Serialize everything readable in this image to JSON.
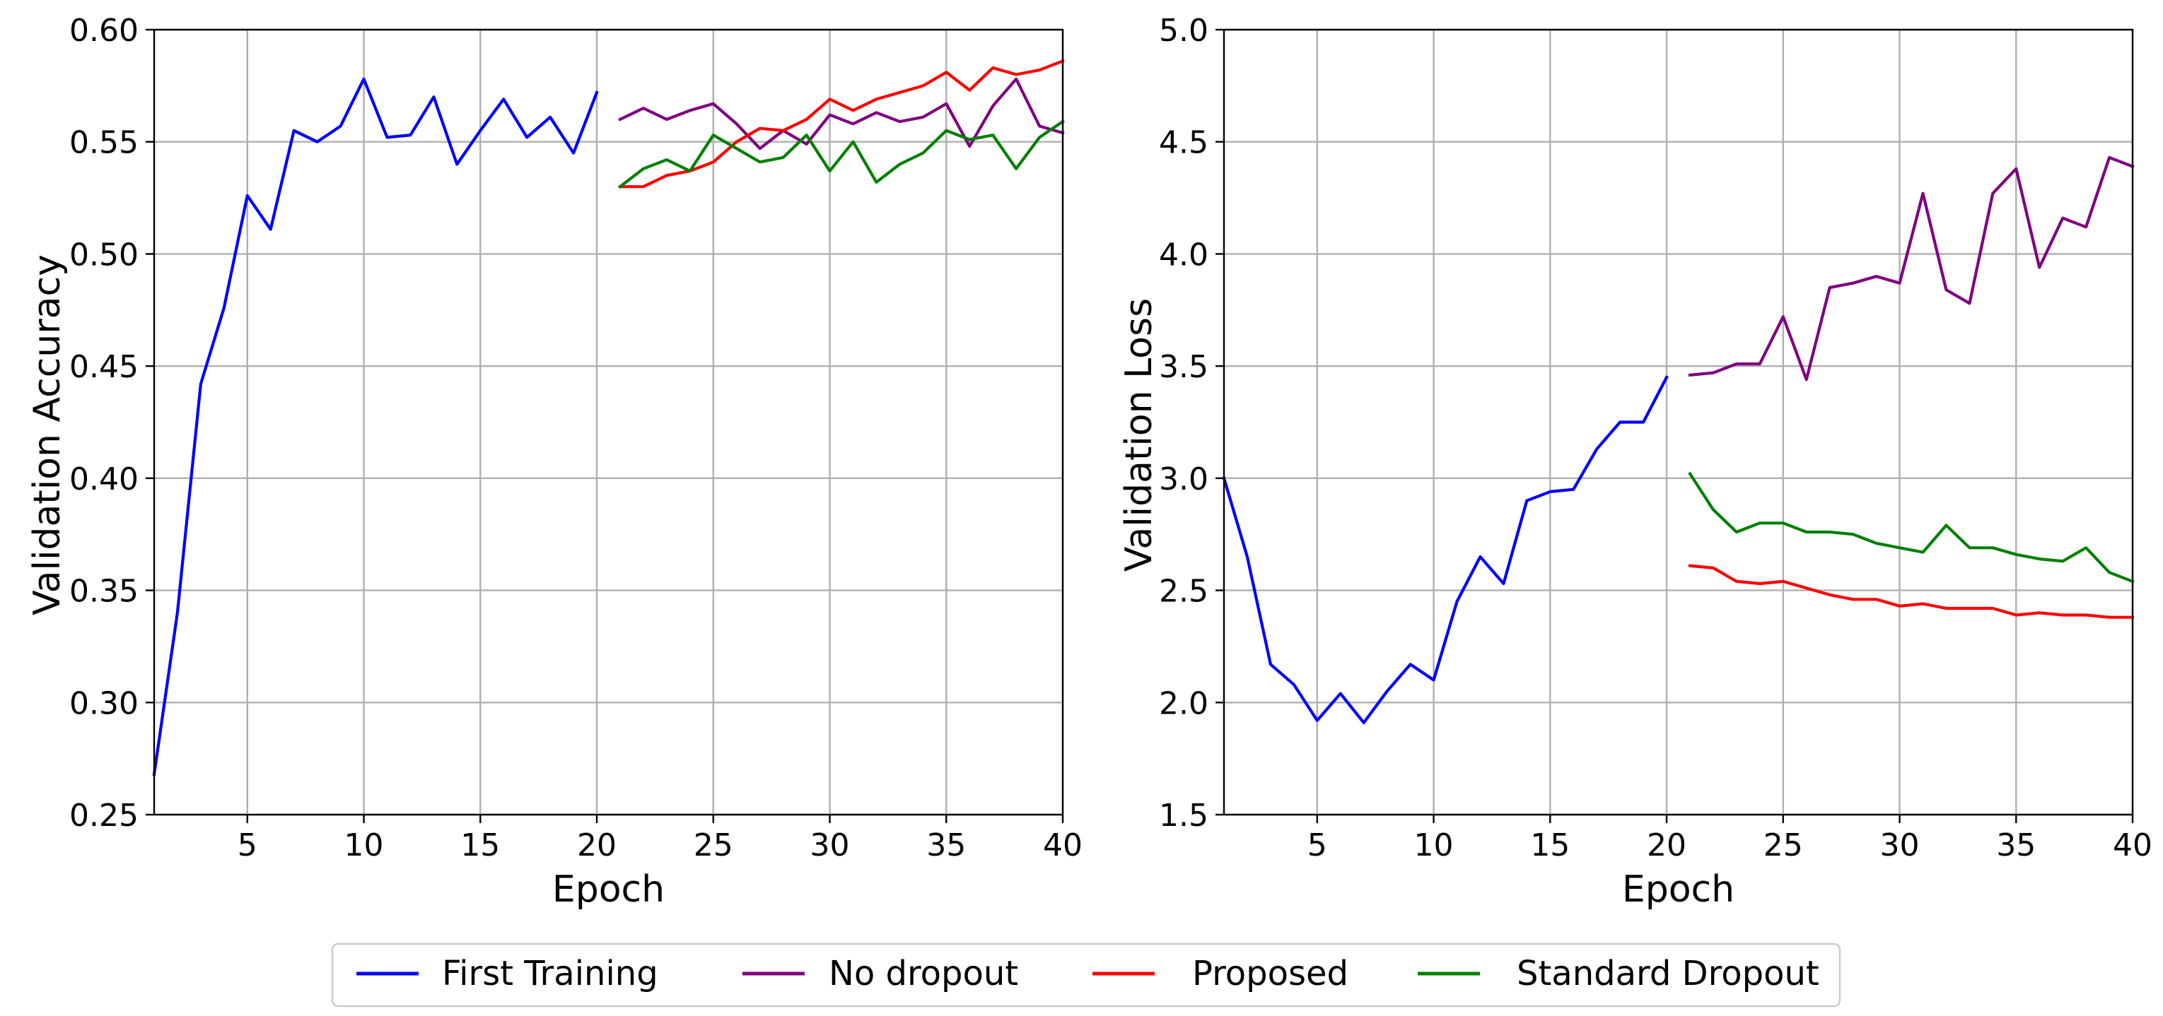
{
  "chart_data": [
    {
      "type": "line",
      "title": "",
      "xlabel": "Epoch",
      "ylabel": "Validation Accuracy",
      "xlim": [
        1,
        40
      ],
      "ylim": [
        0.25,
        0.6
      ],
      "xticks": [
        5,
        10,
        15,
        20,
        25,
        30,
        35,
        40
      ],
      "xtick_labels": [
        "5",
        "10",
        "15",
        "20",
        "25",
        "30",
        "35",
        "40"
      ],
      "yticks": [
        0.25,
        0.3,
        0.35,
        0.4,
        0.45,
        0.5,
        0.55,
        0.6
      ],
      "ytick_labels": [
        "0.25",
        "0.30",
        "0.35",
        "0.40",
        "0.45",
        "0.50",
        "0.55",
        "0.60"
      ],
      "grid": true,
      "series": [
        {
          "name": "First Training",
          "color": "#0000ff",
          "x": [
            1,
            2,
            3,
            4,
            5,
            6,
            7,
            8,
            9,
            10,
            11,
            12,
            13,
            14,
            15,
            16,
            17,
            18,
            19,
            20
          ],
          "y": [
            0.268,
            0.34,
            0.442,
            0.476,
            0.526,
            0.511,
            0.555,
            0.55,
            0.557,
            0.578,
            0.552,
            0.553,
            0.57,
            0.54,
            0.555,
            0.569,
            0.552,
            0.561,
            0.545,
            0.572
          ]
        },
        {
          "name": "No dropout",
          "color": "#800080",
          "x": [
            21,
            22,
            23,
            24,
            25,
            26,
            27,
            28,
            29,
            30,
            31,
            32,
            33,
            34,
            35,
            36,
            37,
            38,
            39,
            40
          ],
          "y": [
            0.56,
            0.565,
            0.56,
            0.564,
            0.567,
            0.558,
            0.547,
            0.555,
            0.549,
            0.562,
            0.558,
            0.563,
            0.559,
            0.561,
            0.567,
            0.548,
            0.566,
            0.578,
            0.557,
            0.554
          ]
        },
        {
          "name": "Proposed",
          "color": "#ff0000",
          "x": [
            21,
            22,
            23,
            24,
            25,
            26,
            27,
            28,
            29,
            30,
            31,
            32,
            33,
            34,
            35,
            36,
            37,
            38,
            39,
            40
          ],
          "y": [
            0.53,
            0.53,
            0.535,
            0.537,
            0.541,
            0.55,
            0.556,
            0.555,
            0.56,
            0.569,
            0.564,
            0.569,
            0.572,
            0.575,
            0.581,
            0.573,
            0.583,
            0.58,
            0.582,
            0.586
          ]
        },
        {
          "name": "Standard Dropout",
          "color": "#008000",
          "x": [
            21,
            22,
            23,
            24,
            25,
            26,
            27,
            28,
            29,
            30,
            31,
            32,
            33,
            34,
            35,
            36,
            37,
            38,
            39,
            40
          ],
          "y": [
            0.53,
            0.538,
            0.542,
            0.537,
            0.553,
            0.547,
            0.541,
            0.543,
            0.553,
            0.537,
            0.55,
            0.532,
            0.54,
            0.545,
            0.555,
            0.551,
            0.553,
            0.538,
            0.552,
            0.559
          ]
        }
      ]
    },
    {
      "type": "line",
      "title": "",
      "xlabel": "Epoch",
      "ylabel": "Validation Loss",
      "xlim": [
        1,
        40
      ],
      "ylim": [
        1.5,
        5.0
      ],
      "xticks": [
        5,
        10,
        15,
        20,
        25,
        30,
        35,
        40
      ],
      "xtick_labels": [
        "5",
        "10",
        "15",
        "20",
        "25",
        "30",
        "35",
        "40"
      ],
      "yticks": [
        1.5,
        2.0,
        2.5,
        3.0,
        3.5,
        4.0,
        4.5,
        5.0
      ],
      "ytick_labels": [
        "1.5",
        "2.0",
        "2.5",
        "3.0",
        "3.5",
        "4.0",
        "4.5",
        "5.0"
      ],
      "grid": true,
      "series": [
        {
          "name": "First Training",
          "color": "#0000ff",
          "x": [
            1,
            2,
            3,
            4,
            5,
            6,
            7,
            8,
            9,
            10,
            11,
            12,
            13,
            14,
            15,
            16,
            17,
            18,
            19,
            20
          ],
          "y": [
            3.0,
            2.65,
            2.17,
            2.08,
            1.92,
            2.04,
            1.91,
            2.05,
            2.17,
            2.1,
            2.45,
            2.65,
            2.53,
            2.9,
            2.94,
            2.95,
            3.13,
            3.25,
            3.25,
            3.45
          ]
        },
        {
          "name": "No dropout",
          "color": "#800080",
          "x": [
            21,
            22,
            23,
            24,
            25,
            26,
            27,
            28,
            29,
            30,
            31,
            32,
            33,
            34,
            35,
            36,
            37,
            38,
            39,
            40
          ],
          "y": [
            3.46,
            3.47,
            3.51,
            3.51,
            3.72,
            3.44,
            3.85,
            3.87,
            3.9,
            3.87,
            4.27,
            3.84,
            3.78,
            4.27,
            4.38,
            3.94,
            4.16,
            4.12,
            4.43,
            4.39
          ]
        },
        {
          "name": "Proposed",
          "color": "#ff0000",
          "x": [
            21,
            22,
            23,
            24,
            25,
            26,
            27,
            28,
            29,
            30,
            31,
            32,
            33,
            34,
            35,
            36,
            37,
            38,
            39,
            40
          ],
          "y": [
            2.61,
            2.6,
            2.54,
            2.53,
            2.54,
            2.51,
            2.48,
            2.46,
            2.46,
            2.43,
            2.44,
            2.42,
            2.42,
            2.42,
            2.39,
            2.4,
            2.39,
            2.39,
            2.38,
            2.38
          ]
        },
        {
          "name": "Standard Dropout",
          "color": "#008000",
          "x": [
            21,
            22,
            23,
            24,
            25,
            26,
            27,
            28,
            29,
            30,
            31,
            32,
            33,
            34,
            35,
            36,
            37,
            38,
            39,
            40
          ],
          "y": [
            3.02,
            2.86,
            2.76,
            2.8,
            2.8,
            2.76,
            2.76,
            2.75,
            2.71,
            2.69,
            2.67,
            2.79,
            2.69,
            2.69,
            2.66,
            2.64,
            2.63,
            2.69,
            2.58,
            2.54
          ]
        }
      ]
    }
  ],
  "legend": {
    "placement": "bottom-center",
    "entries": [
      {
        "label": "First Training",
        "color": "#0000ff"
      },
      {
        "label": "No dropout",
        "color": "#800080"
      },
      {
        "label": "Proposed",
        "color": "#ff0000"
      },
      {
        "label": "Standard Dropout",
        "color": "#008000"
      }
    ]
  }
}
